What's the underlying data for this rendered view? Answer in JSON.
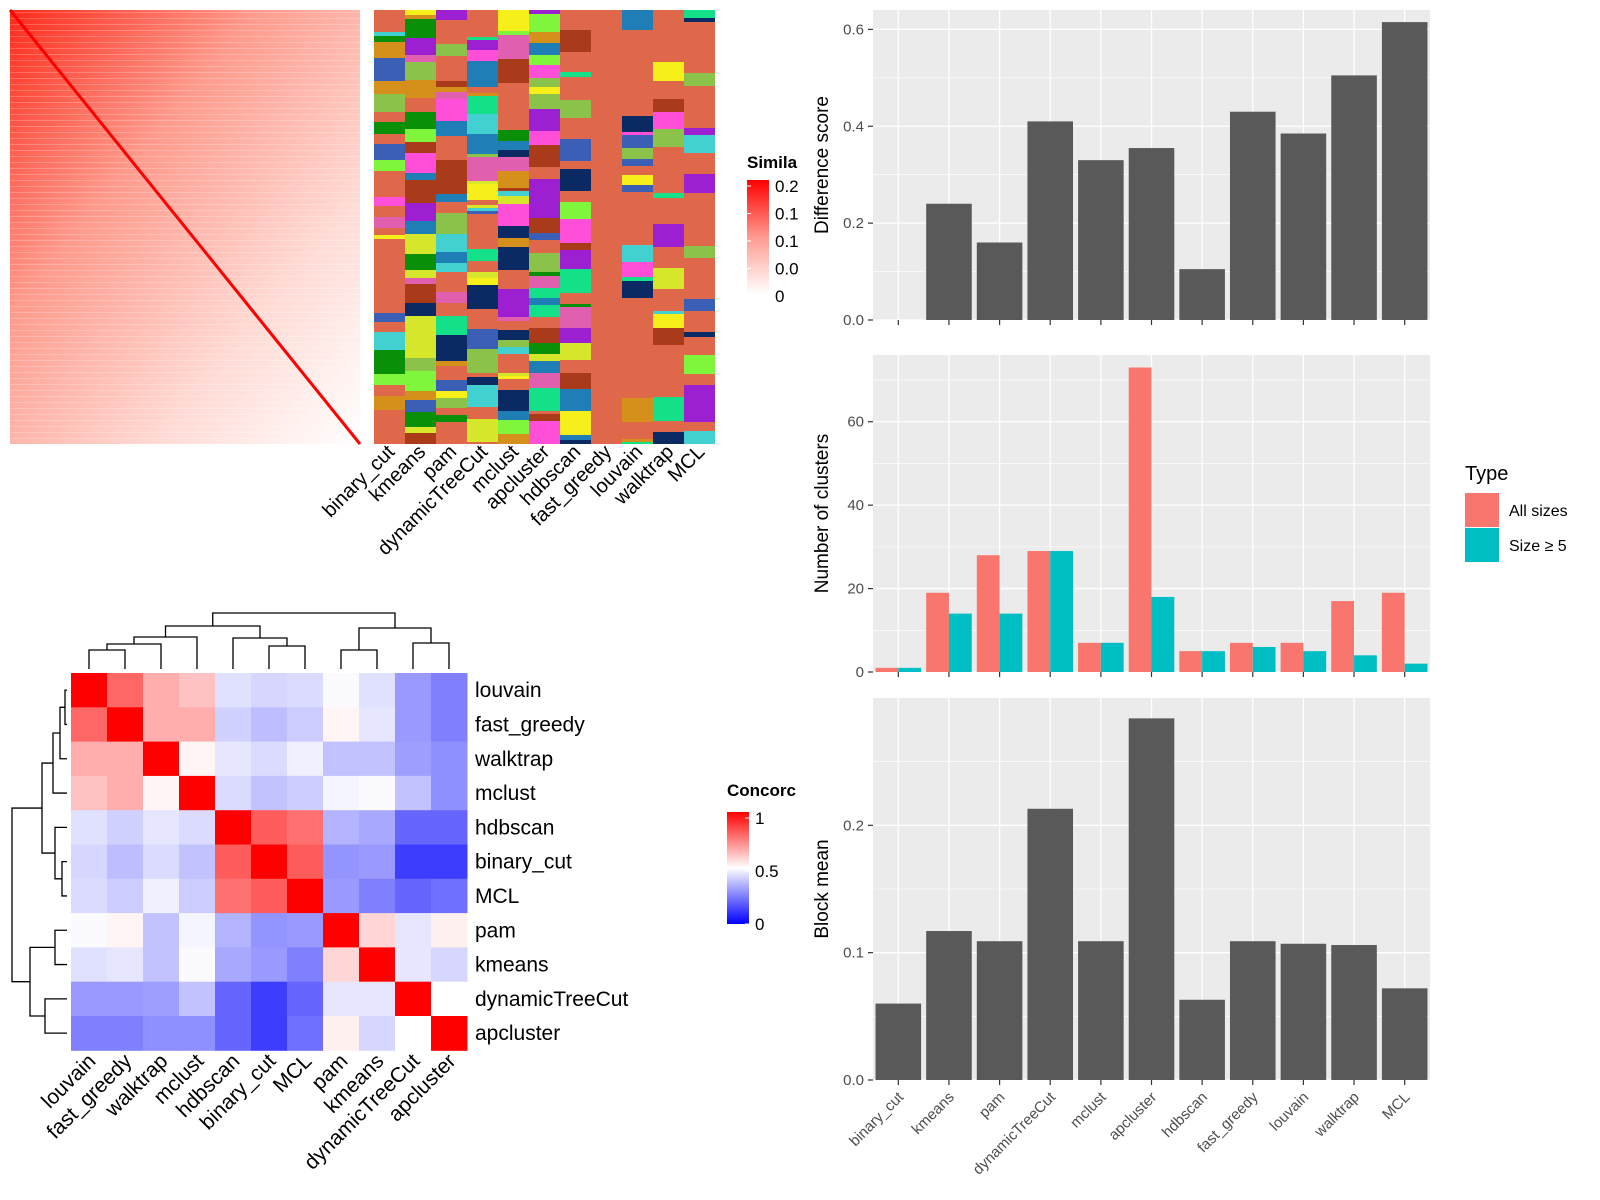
{
  "colors": {
    "panel_bg": "#EBEBEB",
    "grid": "#ffffff",
    "bar_fill": "#595959",
    "all_sizes": "#F8766D",
    "size_ge5": "#00BFC4",
    "heat_high": "#FF0000",
    "heat_mid": "#FFFFFF",
    "heat_low": "#0000FF"
  },
  "similarity_heatmap": {
    "legend_title": "Simila",
    "legend_ticks": [
      "0.2",
      "0.1",
      "0.1",
      "0.0",
      "0"
    ],
    "method_columns": [
      "binary_cut",
      "kmeans",
      "pam",
      "dynamicTreeCut",
      "mclust",
      "apcluster",
      "hdbscan",
      "fast_greedy",
      "louvain",
      "walktrap",
      "MCL"
    ]
  },
  "concordance_heatmap": {
    "legend_title": "Concorc",
    "legend_ticks": [
      "1",
      "0.5",
      "0"
    ],
    "row_labels": [
      "louvain",
      "fast_greedy",
      "walktrap",
      "mclust",
      "hdbscan",
      "binary_cut",
      "MCL",
      "pam",
      "kmeans",
      "dynamicTreeCut",
      "apcluster"
    ],
    "col_labels": [
      "louvain",
      "fast_greedy",
      "walktrap",
      "mclust",
      "hdbscan",
      "binary_cut",
      "MCL",
      "pam",
      "kmeans",
      "dynamicTreeCut",
      "apcluster"
    ]
  },
  "chart_data": [
    {
      "type": "bar",
      "categories": [
        "binary_cut",
        "kmeans",
        "pam",
        "dynamicTreeCut",
        "mclust",
        "apcluster",
        "hdbscan",
        "fast_greedy",
        "louvain",
        "walktrap",
        "MCL"
      ],
      "values": [
        0,
        0.24,
        0.16,
        0.41,
        0.33,
        0.355,
        0.105,
        0.43,
        0.385,
        0.505,
        0.615
      ],
      "ylabel": "Difference score",
      "xlabel": "",
      "ylim": [
        0,
        0.64
      ],
      "yticks": [
        "0.0",
        "0.2",
        "0.4",
        "0.6"
      ],
      "show_x_labels": false,
      "grid": true
    },
    {
      "type": "bar",
      "categories": [
        "binary_cut",
        "kmeans",
        "pam",
        "dynamicTreeCut",
        "mclust",
        "apcluster",
        "hdbscan",
        "fast_greedy",
        "louvain",
        "walktrap",
        "MCL"
      ],
      "series": [
        {
          "name": "All sizes",
          "values": [
            1,
            19,
            28,
            29,
            7,
            73,
            5,
            7,
            7,
            17,
            19
          ]
        },
        {
          "name": "Size ≥ 5",
          "values": [
            1,
            14,
            14,
            29,
            7,
            18,
            5,
            6,
            5,
            4,
            2
          ]
        }
      ],
      "ylabel": "Number of clusters",
      "xlabel": "",
      "ylim": [
        0,
        76
      ],
      "yticks": [
        "0",
        "20",
        "40",
        "60"
      ],
      "legend_title": "Type",
      "legend_position": "right",
      "show_x_labels": false,
      "grid": true
    },
    {
      "type": "bar",
      "categories": [
        "binary_cut",
        "kmeans",
        "pam",
        "dynamicTreeCut",
        "mclust",
        "apcluster",
        "hdbscan",
        "fast_greedy",
        "louvain",
        "walktrap",
        "MCL"
      ],
      "values": [
        0.06,
        0.117,
        0.109,
        0.213,
        0.109,
        0.284,
        0.063,
        0.109,
        0.107,
        0.106,
        0.072
      ],
      "ylabel": "Block mean",
      "xlabel": "",
      "ylim": [
        0,
        0.3
      ],
      "yticks": [
        "0.0",
        "0.1",
        "0.2"
      ],
      "show_x_labels": true,
      "grid": true
    }
  ]
}
